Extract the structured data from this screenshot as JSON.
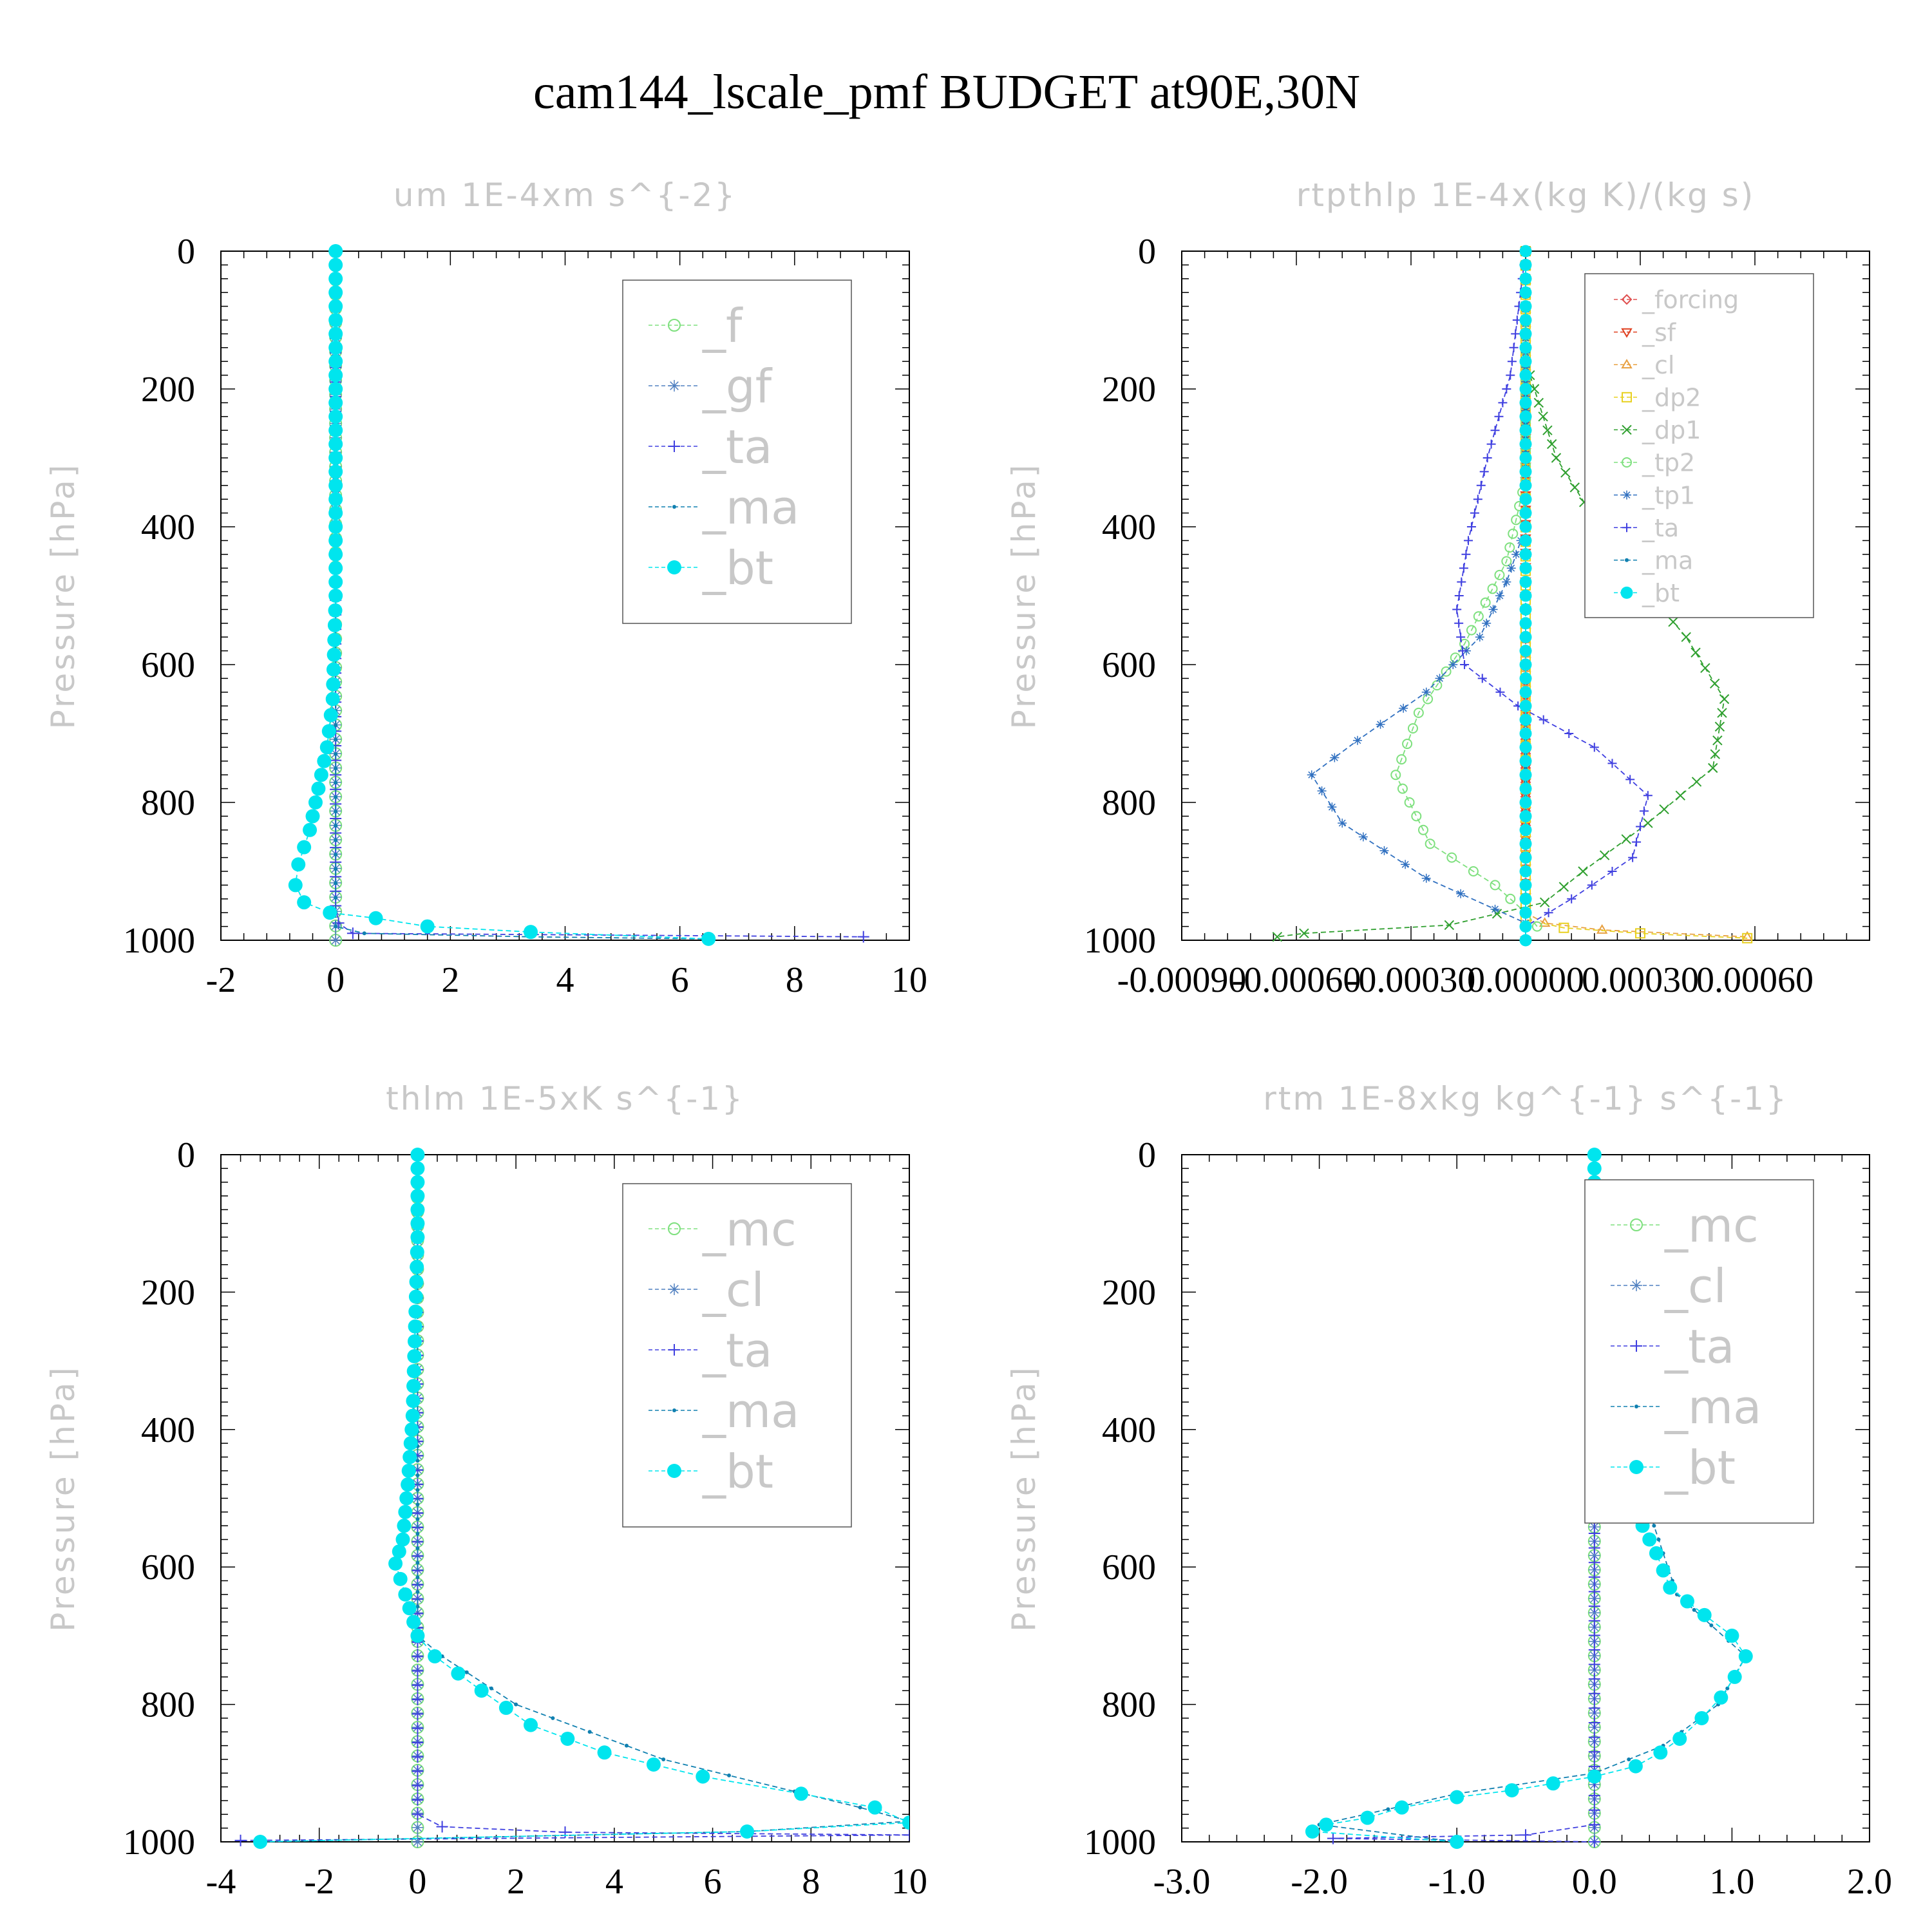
{
  "figure": {
    "title": "cam144_lscale_pmf  BUDGET at90E,30N"
  },
  "colors": {
    "forcing": "#e05050",
    "sf": "#e04020",
    "cl_orange": "#e8a040",
    "dp2": "#e8d020",
    "dp1": "#30a030",
    "green_light": "#7ee07e",
    "blue_star": "#5080c0",
    "ta": "#4040e0",
    "ma": "#1080b0",
    "bt": "#00e5ee",
    "tp1": "#3070c0"
  },
  "chart_data": [
    {
      "type": "line",
      "title": "um  1E-4xm s^{-2}",
      "xlabel": "",
      "ylabel": "Pressure [hPa]",
      "xlim": [
        -2,
        10
      ],
      "ylim": [
        1000,
        0
      ],
      "xticks": [
        "-2",
        "0",
        "2",
        "4",
        "6",
        "8",
        "10"
      ],
      "yticks": [
        "0",
        "200",
        "400",
        "600",
        "800",
        "1000"
      ],
      "legend": {
        "position": "top-right",
        "entries": [
          "_f",
          "_gf",
          "_ta",
          "_ma",
          "_bt"
        ]
      },
      "series": [
        {
          "name": "_f",
          "color": "#7ee07e",
          "marker": "circle",
          "points": [
            [
              0.0,
              0
            ],
            [
              0.0,
              1000
            ]
          ]
        },
        {
          "name": "_gf",
          "color": "#5080c0",
          "marker": "star",
          "points": [
            [
              0.0,
              0
            ],
            [
              0.0,
              1000
            ]
          ]
        },
        {
          "name": "_ta",
          "color": "#4040e0",
          "marker": "plus",
          "points": [
            [
              0.0,
              0
            ],
            [
              0.0,
              950
            ],
            [
              0.05,
              975
            ],
            [
              0.3,
              990
            ],
            [
              9.2,
              995
            ]
          ]
        },
        {
          "name": "_ma",
          "color": "#1080b0",
          "marker": "dot",
          "points": [
            [
              0.0,
              0
            ],
            [
              0.0,
              980
            ],
            [
              0.5,
              990
            ],
            [
              3.4,
              995
            ],
            [
              6.5,
              998
            ]
          ]
        },
        {
          "name": "_bt",
          "color": "#00e5ee",
          "marker": "filled",
          "points": [
            [
              0.0,
              0
            ],
            [
              0.0,
              100
            ],
            [
              0.0,
              300
            ],
            [
              0.0,
              500
            ],
            [
              -0.05,
              650
            ],
            [
              -0.15,
              720
            ],
            [
              -0.3,
              780
            ],
            [
              -0.45,
              840
            ],
            [
              -0.65,
              890
            ],
            [
              -0.7,
              920
            ],
            [
              -0.55,
              945
            ],
            [
              -0.1,
              960
            ],
            [
              0.7,
              968
            ],
            [
              1.6,
              980
            ],
            [
              3.4,
              988
            ],
            [
              6.5,
              998
            ]
          ]
        }
      ]
    },
    {
      "type": "line",
      "title": "rtpthlp  1E-4x(kg K)/(kg s)",
      "xlabel": "",
      "ylabel": "Pressure [hPa]",
      "xlim": [
        -0.0009,
        0.0009
      ],
      "ylim": [
        1000,
        0
      ],
      "xticks": [
        "-0.00090",
        "-0.00060",
        "-0.00030",
        "0.00000",
        "0.00030",
        "0.00060"
      ],
      "yticks": [
        "0",
        "200",
        "400",
        "600",
        "800",
        "1000"
      ],
      "legend": {
        "position": "top-right",
        "entries": [
          "_forcing",
          "_sf",
          "_cl",
          "_dp2",
          "_dp1",
          "_tp2",
          "_tp1",
          "_ta",
          "_ma",
          "_bt"
        ]
      },
      "series": [
        {
          "name": "_forcing",
          "color": "#e05050",
          "marker": "diamond",
          "points": [
            [
              0.0,
              0
            ],
            [
              0.0,
              1000
            ]
          ]
        },
        {
          "name": "_sf",
          "color": "#e04020",
          "marker": "tri-down",
          "points": [
            [
              0.0,
              0
            ],
            [
              0.0,
              1000
            ]
          ]
        },
        {
          "name": "_cl",
          "color": "#e8a040",
          "marker": "tri-up",
          "points": [
            [
              0.0,
              0
            ],
            [
              0.0,
              960
            ],
            [
              5e-05,
              975
            ],
            [
              0.0002,
              985
            ],
            [
              0.00058,
              995
            ]
          ]
        },
        {
          "name": "_dp2",
          "color": "#e8d020",
          "marker": "square",
          "points": [
            [
              0.0,
              0
            ],
            [
              0.0,
              970
            ],
            [
              0.0001,
              982
            ],
            [
              0.0003,
              990
            ],
            [
              0.00058,
              997
            ]
          ]
        },
        {
          "name": "_dp1",
          "color": "#30a030",
          "marker": "cross",
          "points": [
            [
              0.0,
              0
            ],
            [
              0.0,
              160
            ],
            [
              8e-05,
              300
            ],
            [
              0.00025,
              450
            ],
            [
              0.00042,
              560
            ],
            [
              0.00052,
              650
            ],
            [
              0.00049,
              750
            ],
            [
              0.00032,
              830
            ],
            [
              0.00015,
              900
            ],
            [
              5e-05,
              945
            ],
            [
              -0.0002,
              978
            ],
            [
              -0.00058,
              990
            ],
            [
              -0.00065,
              995
            ]
          ]
        },
        {
          "name": "_tp2",
          "color": "#7ee07e",
          "marker": "circle",
          "points": [
            [
              0.0,
              0
            ],
            [
              0.0,
              330
            ],
            [
              -5e-05,
              450
            ],
            [
              -0.00016,
              570
            ],
            [
              -0.00028,
              670
            ],
            [
              -0.00034,
              760
            ],
            [
              -0.00025,
              860
            ],
            [
              -8e-05,
              920
            ],
            [
              0.0,
              960
            ],
            [
              3e-05,
              980
            ]
          ]
        },
        {
          "name": "_tp1",
          "color": "#3070c0",
          "marker": "star",
          "points": [
            [
              0.0,
              0
            ],
            [
              0.0,
              400
            ],
            [
              -5e-05,
              480
            ],
            [
              -0.00012,
              560
            ],
            [
              -0.00026,
              640
            ],
            [
              -0.00044,
              710
            ],
            [
              -0.00056,
              760
            ],
            [
              -0.00048,
              830
            ],
            [
              -0.00026,
              910
            ],
            [
              -8e-05,
              955
            ],
            [
              0.0,
              975
            ]
          ]
        },
        {
          "name": "_ta",
          "color": "#4040e0",
          "marker": "plus",
          "points": [
            [
              0.0,
              0
            ],
            [
              -4e-05,
              180
            ],
            [
              -0.0001,
              300
            ],
            [
              -0.00015,
              420
            ],
            [
              -0.00018,
              520
            ],
            [
              -0.00016,
              600
            ],
            [
              -2e-05,
              660
            ],
            [
              0.00018,
              720
            ],
            [
              0.00032,
              790
            ],
            [
              0.00028,
              880
            ],
            [
              0.00012,
              940
            ],
            [
              0.0,
              980
            ]
          ]
        },
        {
          "name": "_ma",
          "color": "#1080b0",
          "marker": "dot",
          "points": [
            [
              0.0,
              0
            ],
            [
              0.0,
              1000
            ]
          ]
        },
        {
          "name": "_bt",
          "color": "#00e5ee",
          "marker": "filled",
          "points": [
            [
              0.0,
              0
            ],
            [
              0.0,
              100
            ],
            [
              0.0,
              300
            ],
            [
              0.0,
              500
            ],
            [
              0.0,
              700
            ],
            [
              0.0,
              900
            ],
            [
              0.0,
              1000
            ]
          ]
        }
      ]
    },
    {
      "type": "line",
      "title": "thlm  1E-5xK s^{-1}",
      "xlabel": "",
      "ylabel": "Pressure [hPa]",
      "xlim": [
        -4,
        10
      ],
      "ylim": [
        1000,
        0
      ],
      "xticks": [
        "-4",
        "-2",
        "0",
        "2",
        "4",
        "6",
        "8",
        "10"
      ],
      "yticks": [
        "0",
        "200",
        "400",
        "600",
        "800",
        "1000"
      ],
      "legend": {
        "position": "top-right",
        "entries": [
          "_mc",
          "_cl",
          "_ta",
          "_ma",
          "_bt"
        ]
      },
      "series": [
        {
          "name": "_mc",
          "color": "#7ee07e",
          "marker": "circle",
          "points": [
            [
              0.0,
              0
            ],
            [
              0.0,
              1000
            ]
          ]
        },
        {
          "name": "_cl",
          "color": "#5080c0",
          "marker": "star",
          "points": [
            [
              0.0,
              0
            ],
            [
              0.0,
              1000
            ]
          ]
        },
        {
          "name": "_ta",
          "color": "#4040e0",
          "marker": "plus",
          "points": [
            [
              0.0,
              0
            ],
            [
              0.0,
              960
            ],
            [
              0.5,
              978
            ],
            [
              3.0,
              986
            ],
            [
              10.0,
              990
            ],
            [
              -3.6,
              998
            ]
          ]
        },
        {
          "name": "_ma",
          "color": "#1080b0",
          "marker": "dot",
          "points": [
            [
              0.0,
              0
            ],
            [
              0.0,
              700
            ],
            [
              0.5,
              730
            ],
            [
              2.0,
              800
            ],
            [
              5.0,
              880
            ],
            [
              9.0,
              950
            ],
            [
              10.0,
              970
            ],
            [
              6.7,
              985
            ],
            [
              -3.2,
              1000
            ]
          ]
        },
        {
          "name": "_bt",
          "color": "#00e5ee",
          "marker": "filled",
          "points": [
            [
              0.0,
              0
            ],
            [
              0.0,
              120
            ],
            [
              -0.05,
              250
            ],
            [
              -0.1,
              380
            ],
            [
              -0.2,
              480
            ],
            [
              -0.3,
              560
            ],
            [
              -0.45,
              595
            ],
            [
              -0.25,
              640
            ],
            [
              0.0,
              700
            ],
            [
              0.35,
              730
            ],
            [
              1.3,
              780
            ],
            [
              2.3,
              830
            ],
            [
              3.8,
              870
            ],
            [
              5.8,
              905
            ],
            [
              7.8,
              930
            ],
            [
              9.3,
              950
            ],
            [
              10.0,
              972
            ],
            [
              6.7,
              985
            ],
            [
              -3.2,
              1000
            ]
          ]
        }
      ]
    },
    {
      "type": "line",
      "title": "rtm  1E-8xkg kg^{-1} s^{-1}",
      "xlabel": "",
      "ylabel": "Pressure [hPa]",
      "xlim": [
        -3.0,
        2.0
      ],
      "ylim": [
        1000,
        0
      ],
      "xticks": [
        "-3.0",
        "-2.0",
        "-1.0",
        "0.0",
        "1.0",
        "2.0"
      ],
      "yticks": [
        "0",
        "200",
        "400",
        "600",
        "800",
        "1000"
      ],
      "legend": {
        "position": "top-right",
        "entries": [
          "_mc",
          "_cl",
          "_ta",
          "_ma",
          "_bt"
        ]
      },
      "series": [
        {
          "name": "_mc",
          "color": "#7ee07e",
          "marker": "circle",
          "points": [
            [
              0.0,
              0
            ],
            [
              0.0,
              1000
            ]
          ]
        },
        {
          "name": "_cl",
          "color": "#5080c0",
          "marker": "star",
          "points": [
            [
              0.0,
              0
            ],
            [
              0.0,
              1000
            ]
          ]
        },
        {
          "name": "_ta",
          "color": "#4040e0",
          "marker": "plus",
          "points": [
            [
              0.0,
              0
            ],
            [
              0.0,
              975
            ],
            [
              -0.5,
              990
            ],
            [
              -1.9,
              995
            ],
            [
              0.0,
              1000
            ]
          ]
        },
        {
          "name": "_ma",
          "color": "#1080b0",
          "marker": "dot",
          "points": [
            [
              0.0,
              0
            ],
            [
              0.0,
              130
            ],
            [
              0.1,
              250
            ],
            [
              0.15,
              420
            ],
            [
              0.4,
              520
            ],
            [
              0.6,
              640
            ],
            [
              1.1,
              730
            ],
            [
              0.9,
              800
            ],
            [
              0.5,
              860
            ],
            [
              0.0,
              900
            ],
            [
              -1.0,
              930
            ],
            [
              -2.0,
              975
            ],
            [
              -1.0,
              1000
            ]
          ]
        },
        {
          "name": "_bt",
          "color": "#00e5ee",
          "marker": "filled",
          "points": [
            [
              0.0,
              0
            ],
            [
              0.0,
              120
            ],
            [
              0.05,
              170
            ],
            [
              0.1,
              220
            ],
            [
              0.13,
              300
            ],
            [
              0.12,
              380
            ],
            [
              0.05,
              420
            ],
            [
              0.1,
              450
            ],
            [
              0.2,
              480
            ],
            [
              0.3,
              520
            ],
            [
              0.45,
              580
            ],
            [
              0.55,
              630
            ],
            [
              0.8,
              670
            ],
            [
              1.0,
              700
            ],
            [
              1.1,
              730
            ],
            [
              1.02,
              760
            ],
            [
              0.92,
              790
            ],
            [
              0.78,
              820
            ],
            [
              0.62,
              850
            ],
            [
              0.48,
              870
            ],
            [
              0.3,
              890
            ],
            [
              0.0,
              905
            ],
            [
              -0.3,
              915
            ],
            [
              -0.6,
              925
            ],
            [
              -1.0,
              935
            ],
            [
              -1.4,
              950
            ],
            [
              -1.65,
              965
            ],
            [
              -1.95,
              975
            ],
            [
              -2.05,
              985
            ],
            [
              -1.0,
              1000
            ]
          ]
        }
      ]
    }
  ]
}
